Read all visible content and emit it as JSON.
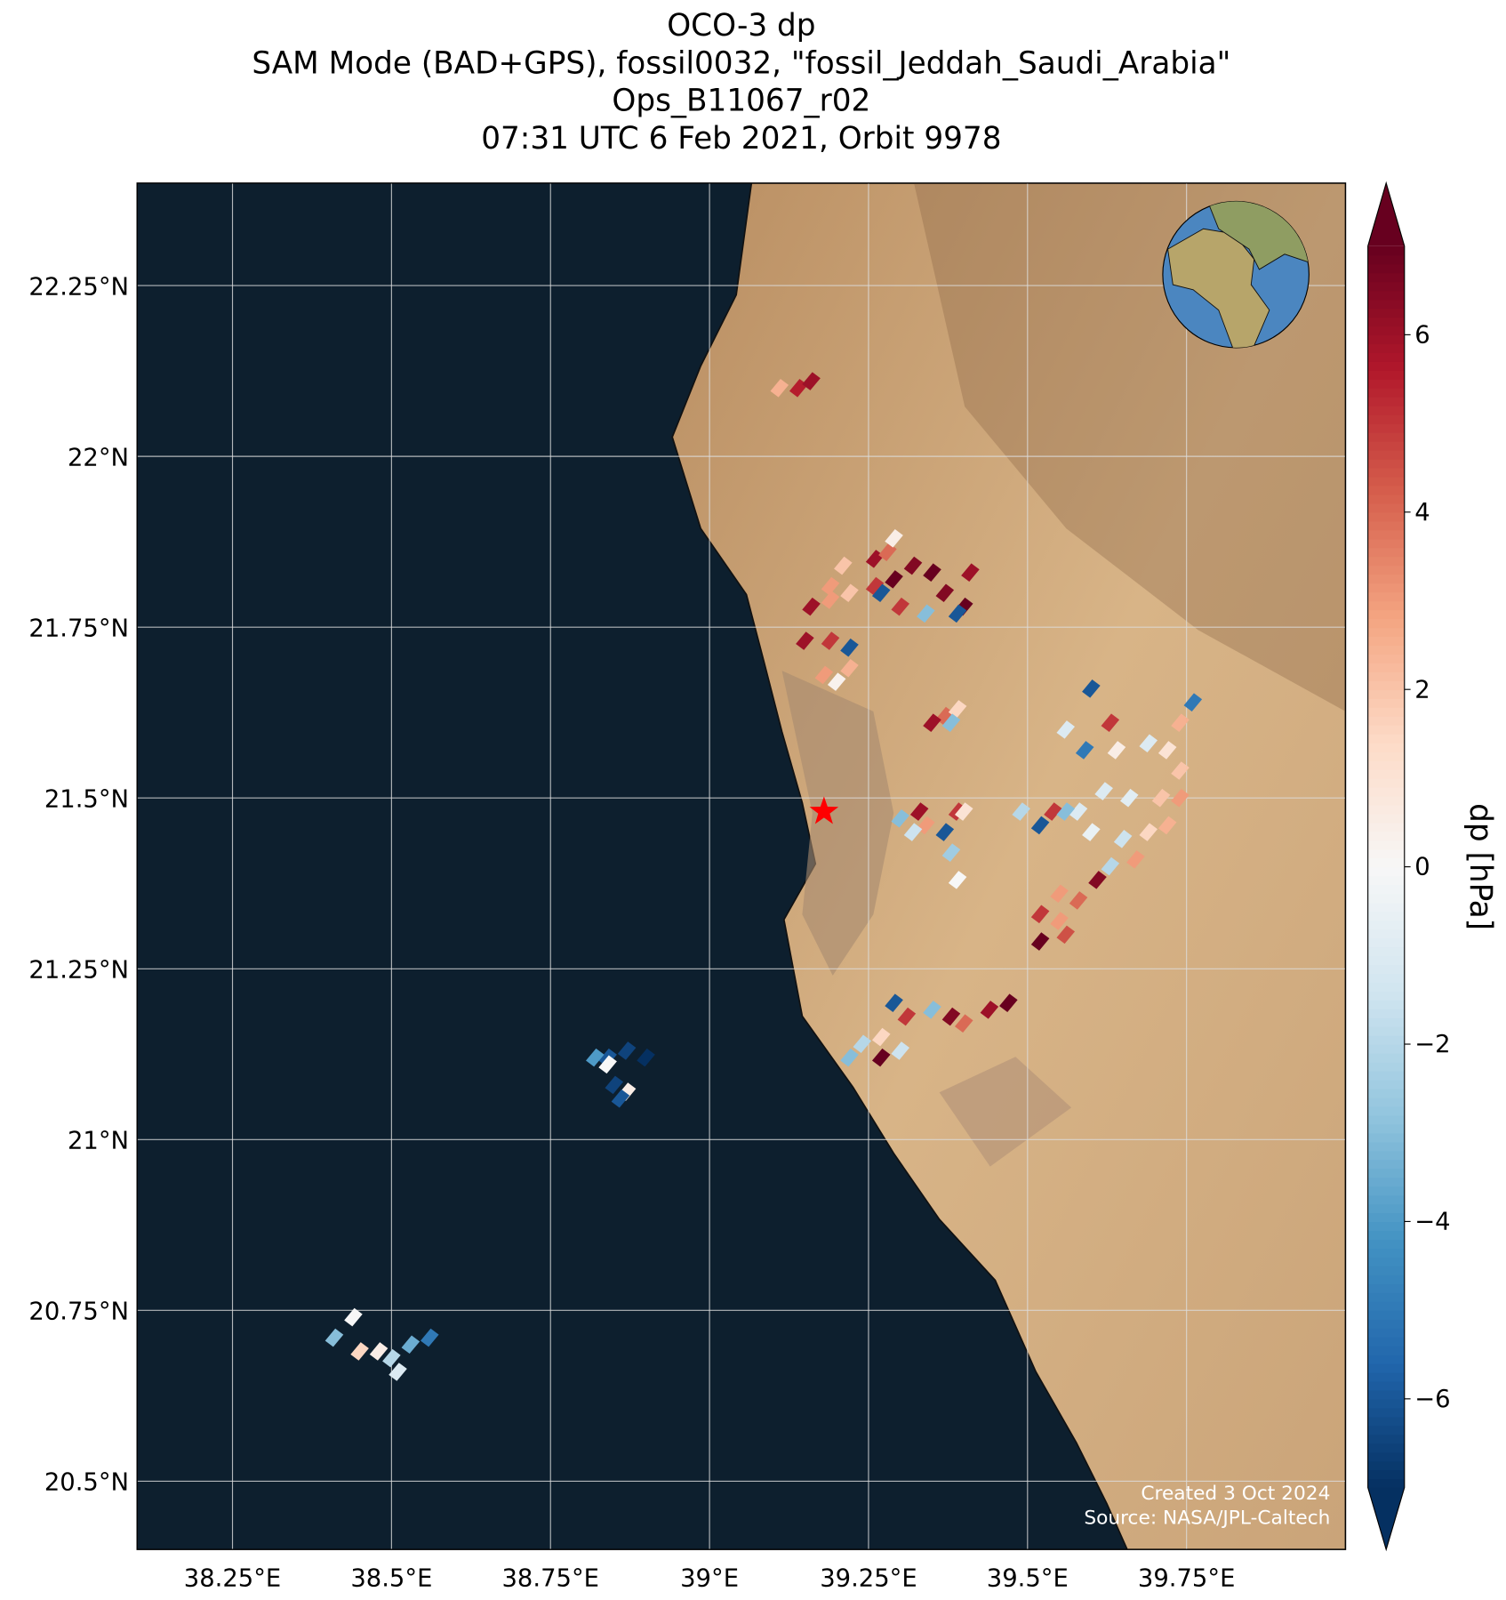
{
  "chart_data": {
    "type": "map",
    "title": [
      "OCO-3 dp",
      "SAM Mode (BAD+GPS), fossil0032, \"fossil_Jeddah_Saudi_Arabia\"",
      "Ops_B11067_r02",
      "07:31 UTC 6 Feb 2021, Orbit 9978"
    ],
    "xlim": [
      38.1,
      40.0
    ],
    "ylim": [
      20.4,
      22.4
    ],
    "xticks": [
      {
        "value": 38.25,
        "label": "38.25°E"
      },
      {
        "value": 38.5,
        "label": "38.5°E"
      },
      {
        "value": 38.75,
        "label": "38.75°E"
      },
      {
        "value": 39,
        "label": "39°E"
      },
      {
        "value": 39.25,
        "label": "39.25°E"
      },
      {
        "value": 39.5,
        "label": "39.5°E"
      },
      {
        "value": 39.75,
        "label": "39.75°E"
      }
    ],
    "yticks": [
      {
        "value": 20.5,
        "label": "20.5°N"
      },
      {
        "value": 20.75,
        "label": "20.75°N"
      },
      {
        "value": 21,
        "label": "21°N"
      },
      {
        "value": 21.25,
        "label": "21.25°N"
      },
      {
        "value": 21.5,
        "label": "21.5°N"
      },
      {
        "value": 21.75,
        "label": "21.75°N"
      },
      {
        "value": 22,
        "label": "22°N"
      },
      {
        "value": 22.25,
        "label": "22.25°N"
      }
    ],
    "grid": true,
    "target": {
      "x": 39.18,
      "y": 21.48,
      "color": "#ff0000"
    },
    "x": [
      39.11,
      39.14,
      39.16,
      39.16,
      39.19,
      39.22,
      39.26,
      39.29,
      39.32,
      39.35,
      39.26,
      39.28,
      39.29,
      39.21,
      39.19,
      39.27,
      39.3,
      39.34,
      39.37,
      39.4,
      39.39,
      39.41,
      39.15,
      39.19,
      39.22,
      39.18,
      39.22,
      39.2,
      39.37,
      39.35,
      39.39,
      39.38,
      39.3,
      39.33,
      39.34,
      39.37,
      39.39,
      39.4,
      39.32,
      39.38,
      39.39,
      39.6,
      39.56,
      39.59,
      39.63,
      39.64,
      39.69,
      39.74,
      39.76,
      39.72,
      39.74,
      39.62,
      39.66,
      39.71,
      39.74,
      39.6,
      39.65,
      39.69,
      39.72,
      39.58,
      39.63,
      39.67,
      39.49,
      39.52,
      39.54,
      39.56,
      39.55,
      39.58,
      39.61,
      39.52,
      39.55,
      39.52,
      39.56,
      39.47,
      39.44,
      39.4,
      39.38,
      39.35,
      39.31,
      39.29,
      39.27,
      39.27,
      39.24,
      39.22,
      39.3,
      38.84,
      38.82,
      38.87,
      38.9,
      38.84,
      38.85,
      38.87,
      38.86,
      38.44,
      38.41,
      38.45,
      38.48,
      38.5,
      38.51,
      38.53,
      38.56
    ],
    "y": [
      22.1,
      22.1,
      22.11,
      21.78,
      21.79,
      21.8,
      21.81,
      21.82,
      21.84,
      21.83,
      21.85,
      21.86,
      21.88,
      21.84,
      21.81,
      21.8,
      21.78,
      21.77,
      21.8,
      21.78,
      21.77,
      21.83,
      21.73,
      21.73,
      21.72,
      21.68,
      21.69,
      21.67,
      21.62,
      21.61,
      21.63,
      21.61,
      21.47,
      21.48,
      21.46,
      21.45,
      21.48,
      21.48,
      21.45,
      21.42,
      21.38,
      21.66,
      21.6,
      21.57,
      21.61,
      21.57,
      21.58,
      21.61,
      21.64,
      21.57,
      21.54,
      21.51,
      21.5,
      21.5,
      21.5,
      21.45,
      21.44,
      21.45,
      21.46,
      21.48,
      21.4,
      21.41,
      21.48,
      21.46,
      21.48,
      21.48,
      21.36,
      21.35,
      21.38,
      21.33,
      21.32,
      21.29,
      21.3,
      21.2,
      21.19,
      21.17,
      21.18,
      21.19,
      21.18,
      21.2,
      21.12,
      21.15,
      21.14,
      21.12,
      21.13,
      21.12,
      21.12,
      21.13,
      21.12,
      21.11,
      21.08,
      21.07,
      21.06,
      20.74,
      20.71,
      20.69,
      20.69,
      20.68,
      20.66,
      20.7,
      20.71
    ],
    "values": [
      2.5,
      5.5,
      6,
      6,
      3,
      2,
      5,
      7,
      6.5,
      7,
      6,
      4,
      0.5,
      2,
      3,
      -6,
      5,
      -3,
      6.5,
      7,
      -6,
      6,
      6,
      5,
      -6,
      3,
      2.5,
      0.3,
      4,
      6,
      1.5,
      -3,
      -3,
      6,
      3,
      -6,
      5,
      1,
      -1.5,
      -2.5,
      0,
      -6,
      -1,
      -5,
      5,
      0.5,
      -1,
      2.5,
      -5,
      1,
      2,
      -1,
      -0.8,
      2,
      3,
      -0.5,
      -1.5,
      1.5,
      2.5,
      -1,
      -2,
      3,
      -2,
      -6,
      5,
      -3,
      3,
      4,
      6.5,
      5,
      3,
      7,
      4.5,
      7,
      6,
      4,
      6.5,
      -3,
      5,
      -6,
      7,
      1.5,
      -2,
      -3,
      -1.5,
      -6,
      -4,
      -6.5,
      -7,
      0,
      -6.5,
      0.5,
      -6,
      0,
      -3,
      1.5,
      0.5,
      -2,
      -1,
      -3.5,
      -5
    ],
    "colorbar": {
      "label": "dp [hPa]",
      "clim": [
        -7,
        7
      ],
      "extend": "both",
      "ticks": [
        {
          "value": -6,
          "label": "−6"
        },
        {
          "value": -4,
          "label": "−4"
        },
        {
          "value": -2,
          "label": "−2"
        },
        0,
        2,
        4,
        6
      ],
      "colors": [
        "#053061",
        "#2166ac",
        "#4393c3",
        "#92c5de",
        "#d1e5f0",
        "#f7f7f7",
        "#fddbc7",
        "#f4a582",
        "#d6604d",
        "#b2182b",
        "#67001f"
      ]
    },
    "annotations": [
      "Created 3 Oct 2024",
      "Source: NASA/JPL-Caltech"
    ]
  }
}
